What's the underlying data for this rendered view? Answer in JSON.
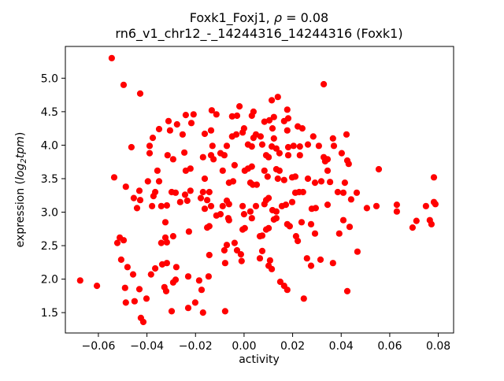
{
  "figure": {
    "title_prefix": "Foxk1_Foxj1, ",
    "title_rho": "ρ",
    "title_eq": " = 0.08",
    "subtitle": "rn6_v1_chr12_-_14244316_14244316 (Foxk1)",
    "xlabel": "activity",
    "ylabel_prefix": "expression (",
    "ylabel_log": "log",
    "ylabel_sub": "2",
    "ylabel_tpm": "tpm",
    "ylabel_suffix": ")"
  },
  "chart_data": {
    "type": "scatter",
    "title": "Foxk1_Foxj1, ρ = 0.08",
    "subtitle": "rn6_v1_chr12_-_14244316_14244316 (Foxk1)",
    "xlabel": "activity",
    "ylabel": "expression (log2tpm)",
    "marker_color": "#ff0000",
    "marker_radius": 4.1,
    "frame_color": "#000000",
    "grid": false,
    "legend": null,
    "xlim": [
      -0.0736,
      0.0863
    ],
    "ylim": [
      1.196,
      5.474
    ],
    "x_ticks": [
      -0.06,
      -0.04,
      -0.02,
      0.0,
      0.02,
      0.04,
      0.06,
      0.08
    ],
    "x_tick_labels": [
      "−0.06",
      "−0.04",
      "−0.02",
      "0.00",
      "0.02",
      "0.04",
      "0.06",
      "0.08"
    ],
    "y_ticks": [
      1.5,
      2.0,
      2.5,
      3.0,
      3.5,
      4.0,
      4.5,
      5.0
    ],
    "y_tick_labels": [
      "1.5",
      "2.0",
      "2.5",
      "3.0",
      "3.5",
      "4.0",
      "4.5",
      "5.0"
    ],
    "points": [
      [
        -0.0545,
        5.3
      ],
      [
        -0.0496,
        4.9
      ],
      [
        -0.0428,
        4.77
      ],
      [
        -0.035,
        4.24
      ],
      [
        -0.0311,
        4.36
      ],
      [
        -0.0276,
        4.31
      ],
      [
        -0.024,
        4.45
      ],
      [
        -0.0376,
        4.11
      ],
      [
        -0.0305,
        4.22
      ],
      [
        -0.0253,
        4.16
      ],
      [
        -0.0217,
        4.33
      ],
      [
        -0.0208,
        4.46
      ],
      [
        0.0328,
        4.91
      ],
      [
        0.0114,
        4.67
      ],
      [
        0.0139,
        4.72
      ],
      [
        -0.0019,
        4.58
      ],
      [
        -0.0133,
        4.52
      ],
      [
        -0.0114,
        4.46
      ],
      [
        -0.0049,
        4.43
      ],
      [
        -0.0029,
        4.44
      ],
      [
        0.0039,
        4.5
      ],
      [
        0.0032,
        4.44
      ],
      [
        0.0123,
        4.42
      ],
      [
        0.0104,
        4.37
      ],
      [
        0.0084,
        4.35
      ],
      [
        0.0178,
        4.53
      ],
      [
        0.0182,
        4.4
      ],
      [
        0.0165,
        4.36
      ],
      [
        0.0,
        4.25
      ],
      [
        -0.0006,
        4.19
      ],
      [
        0.0117,
        4.25
      ],
      [
        0.0178,
        4.22
      ],
      [
        0.0221,
        4.28
      ],
      [
        0.024,
        4.25
      ],
      [
        -0.0136,
        4.22
      ],
      [
        -0.0162,
        4.17
      ],
      [
        -0.0049,
        4.13
      ],
      [
        -0.0032,
        4.16
      ],
      [
        0.0049,
        4.16
      ],
      [
        0.0039,
        4.11
      ],
      [
        0.0068,
        4.13
      ],
      [
        0.0123,
        4.1
      ],
      [
        0.0285,
        4.13
      ],
      [
        0.0366,
        4.1
      ],
      [
        0.0422,
        4.16
      ],
      [
        -0.0464,
        3.97
      ],
      [
        -0.0389,
        3.99
      ],
      [
        -0.0315,
        3.85
      ],
      [
        -0.0292,
        3.79
      ],
      [
        -0.0246,
        3.89
      ],
      [
        -0.0389,
        3.88
      ],
      [
        -0.0357,
        3.62
      ],
      [
        -0.024,
        3.62
      ],
      [
        -0.0221,
        3.65
      ],
      [
        -0.0535,
        3.52
      ],
      [
        -0.0396,
        3.46
      ],
      [
        -0.035,
        3.46
      ],
      [
        -0.0487,
        3.38
      ],
      [
        -0.0431,
        3.32
      ],
      [
        -0.0366,
        3.3
      ],
      [
        -0.0373,
        3.24
      ],
      [
        -0.0298,
        3.3
      ],
      [
        -0.0282,
        3.29
      ],
      [
        -0.0243,
        3.26
      ],
      [
        -0.0221,
        3.32
      ],
      [
        -0.0454,
        3.21
      ],
      [
        -0.0428,
        3.18
      ],
      [
        -0.0379,
        3.09
      ],
      [
        -0.0341,
        3.09
      ],
      [
        -0.0318,
        3.1
      ],
      [
        -0.0263,
        3.15
      ],
      [
        -0.0234,
        3.17
      ],
      [
        -0.0441,
        3.06
      ],
      [
        -0.0324,
        2.85
      ],
      [
        -0.0227,
        2.71
      ],
      [
        -0.0512,
        2.62
      ],
      [
        -0.0496,
        2.58
      ],
      [
        -0.0324,
        2.62
      ],
      [
        -0.0292,
        2.64
      ],
      [
        -0.013,
        3.99
      ],
      [
        -0.0071,
        3.99
      ],
      [
        0.0016,
        4.01
      ],
      [
        0.0032,
        3.98
      ],
      [
        0.0075,
        4.01
      ],
      [
        0.0114,
        3.98
      ],
      [
        0.0133,
        3.95
      ],
      [
        0.0182,
        3.97
      ],
      [
        0.0204,
        3.99
      ],
      [
        0.023,
        3.98
      ],
      [
        0.0263,
        4.01
      ],
      [
        0.0308,
        3.99
      ],
      [
        -0.0136,
        3.85
      ],
      [
        -0.0097,
        3.88
      ],
      [
        -0.0081,
        3.85
      ],
      [
        -0.0169,
        3.82
      ],
      [
        -0.0126,
        3.79
      ],
      [
        0.0091,
        3.85
      ],
      [
        0.0101,
        3.82
      ],
      [
        0.0146,
        3.88
      ],
      [
        0.0182,
        3.85
      ],
      [
        0.023,
        3.85
      ],
      [
        0.0328,
        3.82
      ],
      [
        0.0334,
        3.76
      ],
      [
        -0.0039,
        3.7
      ],
      [
        0.0016,
        3.65
      ],
      [
        0.0032,
        3.68
      ],
      [
        -0.0088,
        3.62
      ],
      [
        0.0084,
        3.62
      ],
      [
        0.0133,
        3.64
      ],
      [
        0.0146,
        3.62
      ],
      [
        -0.0162,
        3.5
      ],
      [
        -0.0062,
        3.44
      ],
      [
        -0.0045,
        3.46
      ],
      [
        0.0003,
        3.62
      ],
      [
        0.0026,
        3.44
      ],
      [
        0.0036,
        3.41
      ],
      [
        0.0052,
        3.41
      ],
      [
        0.0097,
        3.53
      ],
      [
        0.0139,
        3.5
      ],
      [
        0.0165,
        3.48
      ],
      [
        0.0198,
        3.52
      ],
      [
        0.0211,
        3.53
      ],
      [
        0.0263,
        3.5
      ],
      [
        0.0292,
        3.44
      ],
      [
        0.0318,
        3.46
      ],
      [
        -0.0169,
        3.3
      ],
      [
        -0.0143,
        3.3
      ],
      [
        -0.0178,
        3.21
      ],
      [
        -0.0152,
        3.18
      ],
      [
        -0.0136,
        3.09
      ],
      [
        -0.0162,
        3.05
      ],
      [
        -0.0071,
        3.17
      ],
      [
        -0.0062,
        3.12
      ],
      [
        -0.0088,
        3.09
      ],
      [
        -0.0097,
        2.97
      ],
      [
        -0.0114,
        2.95
      ],
      [
        -0.0065,
        2.91
      ],
      [
        -0.0062,
        2.88
      ],
      [
        -0.0006,
        3.09
      ],
      [
        0.0,
        2.97
      ],
      [
        0.0026,
        3.01
      ],
      [
        0.0032,
        2.91
      ],
      [
        0.0049,
        3.09
      ],
      [
        0.0091,
        3.18
      ],
      [
        0.0101,
        3.21
      ],
      [
        0.0084,
        3.12
      ],
      [
        0.0117,
        3.03
      ],
      [
        0.0133,
        3.01
      ],
      [
        0.0156,
        3.09
      ],
      [
        0.0172,
        3.11
      ],
      [
        0.0198,
        3.15
      ],
      [
        0.0211,
        3.29
      ],
      [
        0.0227,
        3.3
      ],
      [
        0.0243,
        3.3
      ],
      [
        0.0279,
        3.05
      ],
      [
        0.0295,
        3.06
      ],
      [
        0.0237,
        2.85
      ],
      [
        0.0276,
        2.82
      ],
      [
        0.0292,
        2.68
      ],
      [
        0.0123,
        2.89
      ],
      [
        0.0133,
        2.91
      ],
      [
        0.0178,
        2.82
      ],
      [
        0.0188,
        2.79
      ],
      [
        0.0091,
        2.74
      ],
      [
        0.0101,
        2.76
      ],
      [
        -0.0006,
        2.74
      ],
      [
        0.0003,
        2.76
      ],
      [
        -0.0152,
        2.77
      ],
      [
        -0.0143,
        2.79
      ],
      [
        0.0065,
        2.64
      ],
      [
        0.0075,
        2.65
      ],
      [
        0.0214,
        2.64
      ],
      [
        0.037,
        3.99
      ],
      [
        0.0402,
        3.88
      ],
      [
        0.0344,
        3.79
      ],
      [
        0.0425,
        3.77
      ],
      [
        0.0431,
        3.72
      ],
      [
        0.0344,
        3.62
      ],
      [
        0.0555,
        3.64
      ],
      [
        0.0354,
        3.45
      ],
      [
        0.0415,
        3.44
      ],
      [
        0.0386,
        3.3
      ],
      [
        0.0409,
        3.29
      ],
      [
        0.0464,
        3.29
      ],
      [
        0.0441,
        3.19
      ],
      [
        0.0344,
        3.11
      ],
      [
        0.0506,
        3.06
      ],
      [
        0.0545,
        3.09
      ],
      [
        0.0629,
        3.11
      ],
      [
        0.0629,
        3.01
      ],
      [
        0.0782,
        3.52
      ],
      [
        0.0749,
        3.09
      ],
      [
        0.0782,
        3.15
      ],
      [
        0.0788,
        3.12
      ],
      [
        0.071,
        2.87
      ],
      [
        0.0694,
        2.77
      ],
      [
        0.0765,
        2.88
      ],
      [
        0.0772,
        2.82
      ],
      [
        0.0409,
        2.88
      ],
      [
        0.0435,
        2.78
      ],
      [
        0.0392,
        2.68
      ],
      [
        -0.0522,
        2.54
      ],
      [
        -0.0341,
        2.54
      ],
      [
        -0.0318,
        2.55
      ],
      [
        -0.0506,
        2.29
      ],
      [
        -0.048,
        2.18
      ],
      [
        -0.0457,
        2.07
      ],
      [
        -0.0383,
        2.07
      ],
      [
        -0.0366,
        2.16
      ],
      [
        -0.0337,
        2.22
      ],
      [
        -0.0318,
        2.24
      ],
      [
        -0.0279,
        2.18
      ],
      [
        -0.0675,
        1.98
      ],
      [
        -0.0606,
        1.9
      ],
      [
        -0.049,
        1.87
      ],
      [
        -0.0431,
        1.85
      ],
      [
        -0.0328,
        1.88
      ],
      [
        -0.0321,
        1.82
      ],
      [
        -0.0292,
        1.95
      ],
      [
        -0.0282,
        1.99
      ],
      [
        -0.023,
        2.04
      ],
      [
        -0.0487,
        1.65
      ],
      [
        -0.0451,
        1.67
      ],
      [
        -0.0402,
        1.71
      ],
      [
        -0.0298,
        1.52
      ],
      [
        -0.023,
        1.57
      ],
      [
        -0.0425,
        1.42
      ],
      [
        -0.0415,
        1.36
      ],
      [
        0.0221,
        2.57
      ],
      [
        -0.0071,
        2.51
      ],
      [
        -0.0039,
        2.54
      ],
      [
        -0.0143,
        2.36
      ],
      [
        -0.0081,
        2.43
      ],
      [
        -0.0029,
        2.43
      ],
      [
        -0.0013,
        2.37
      ],
      [
        -0.001,
        2.27
      ],
      [
        -0.0078,
        2.24
      ],
      [
        0.0075,
        2.42
      ],
      [
        0.0065,
        2.31
      ],
      [
        0.0107,
        2.28
      ],
      [
        0.0101,
        2.2
      ],
      [
        0.0114,
        2.15
      ],
      [
        0.0149,
        1.96
      ],
      [
        0.0165,
        1.9
      ],
      [
        0.0178,
        1.84
      ],
      [
        0.0259,
        2.31
      ],
      [
        0.0276,
        2.2
      ],
      [
        0.0315,
        2.29
      ],
      [
        0.0246,
        1.71
      ],
      [
        -0.0185,
        1.98
      ],
      [
        -0.0146,
        2.04
      ],
      [
        -0.0175,
        1.84
      ],
      [
        -0.0201,
        1.65
      ],
      [
        -0.0169,
        1.5
      ],
      [
        -0.0078,
        1.52
      ],
      [
        0.0467,
        2.41
      ],
      [
        0.0366,
        2.24
      ],
      [
        0.0425,
        1.82
      ]
    ]
  }
}
